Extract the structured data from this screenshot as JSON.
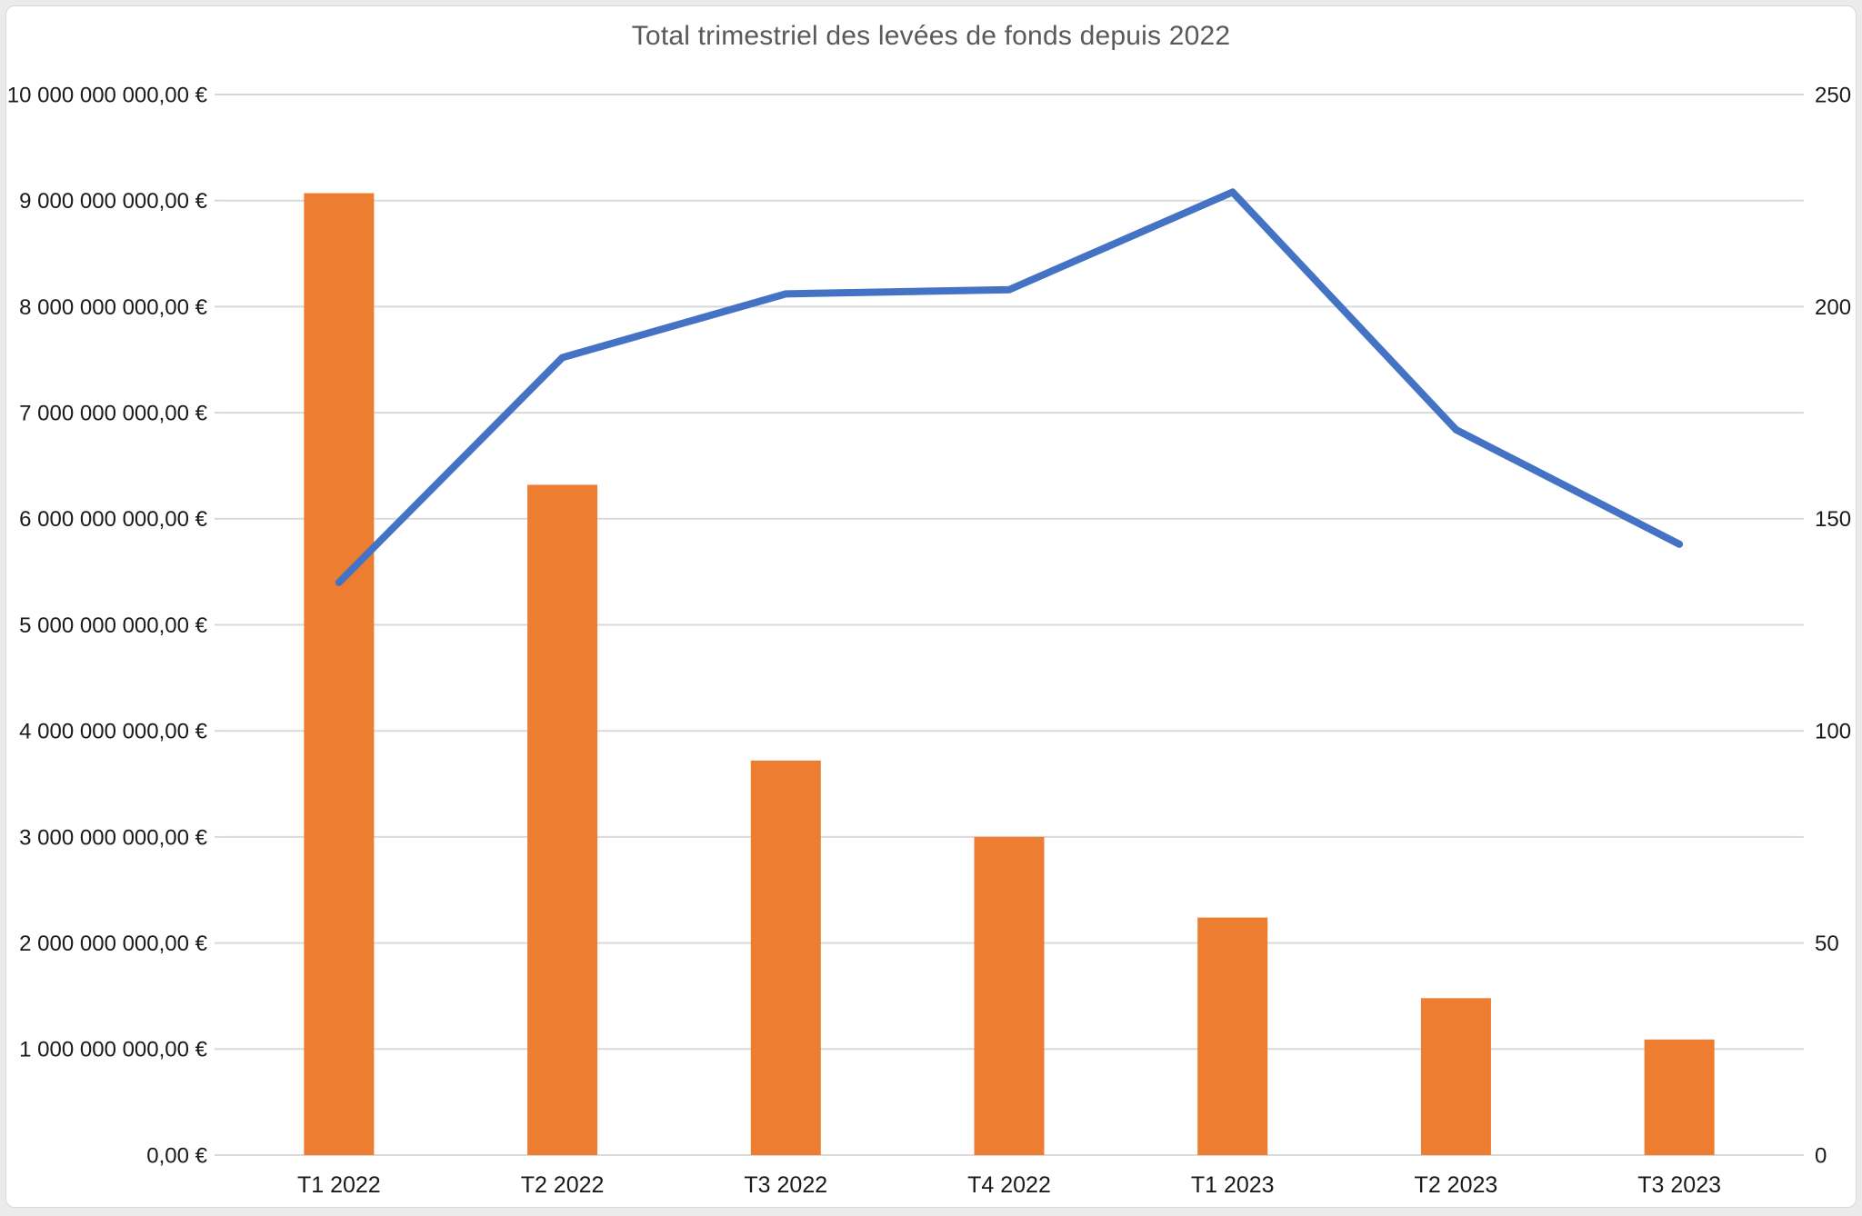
{
  "title": "Total trimestriel des levées de fonds depuis 2022",
  "chart_data": {
    "type": "combo",
    "title": "Total trimestriel des levées de fonds depuis 2022",
    "categories": [
      "T1 2022",
      "T2 2022",
      "T3 2022",
      "T4 2022",
      "T1 2023",
      "T2 2023",
      "T3 2023"
    ],
    "series": [
      {
        "type": "bar",
        "axis": "left",
        "color": "#ED7D31",
        "values": [
          9070000000,
          6320000000,
          3720000000,
          3000000000,
          2240000000,
          1480000000,
          1090000000
        ]
      },
      {
        "type": "line",
        "axis": "right",
        "color": "#4472C4",
        "values": [
          135,
          188,
          203,
          204,
          227,
          171,
          144
        ]
      }
    ],
    "left_axis": {
      "min": 0,
      "max": 10000000000,
      "step": 1000000000,
      "tick_labels": [
        "10 000 000 000,00 €",
        "9 000 000 000,00 €",
        "8 000 000 000,00 €",
        "7 000 000 000,00 €",
        "6 000 000 000,00 €",
        "5 000 000 000,00 €",
        "4 000 000 000,00 €",
        "3 000 000 000,00 €",
        "2 000 000 000,00 €",
        "1 000 000 000,00 €",
        "0,00 €"
      ]
    },
    "right_axis": {
      "min": 0,
      "max": 250,
      "step": 50,
      "tick_labels": [
        "250",
        "200",
        "150",
        "100",
        "50",
        "0"
      ]
    },
    "grid": true,
    "legend": false,
    "colors": {
      "title_text": "#595959",
      "axis_text": "#1a1a1a",
      "gridline": "#d9d9d9",
      "plot_background": "#ffffff",
      "outer_background": "#ebebeb"
    }
  }
}
